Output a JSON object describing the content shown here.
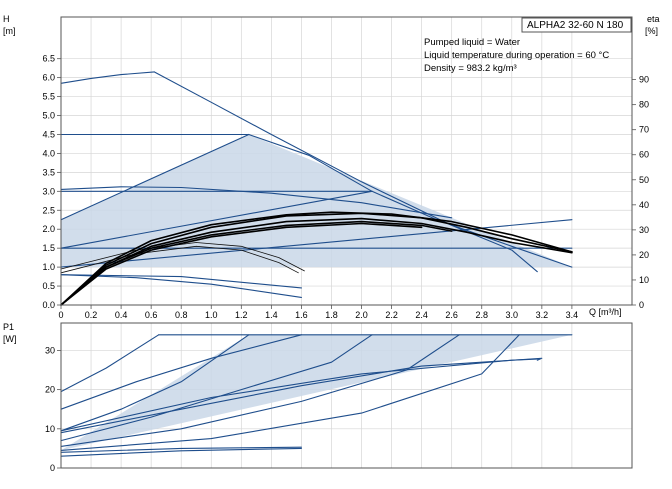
{
  "chart_data": [
    {
      "type": "line",
      "panel": "head-efficiency",
      "model_label": "ALPHA2 32-60 N 180",
      "notes": [
        "Pumped liquid = Water",
        "Liquid temperature during operation = 60 °C",
        "Density = 983.2 kg/m³"
      ],
      "xlabel": "Q [m³/h]",
      "ylabel_line1": "H",
      "ylabel_line2": "[m]",
      "y2label_line1": "eta",
      "y2label_line2": "[%]",
      "xlim": [
        0,
        3.8
      ],
      "ylim": [
        0,
        7.6
      ],
      "y2lim": [
        0,
        115
      ],
      "x_ticks": [
        0,
        0.2,
        0.4,
        0.6,
        0.8,
        1.0,
        1.2,
        1.4,
        1.6,
        1.8,
        2.0,
        2.2,
        2.4,
        2.6,
        2.8,
        3.0,
        3.2,
        3.4
      ],
      "x_tick_labels": [
        "0",
        "0.2",
        "0.4",
        "0.6",
        "0.8",
        "1.0",
        "1.2",
        "1.4",
        "1.6",
        "1.8",
        "2.0",
        "2.2",
        "2.4",
        "2.6",
        "2.8",
        "3.0",
        "3.2",
        "3.4"
      ],
      "y_ticks": [
        0,
        0.5,
        1.0,
        1.5,
        2.0,
        2.5,
        3.0,
        3.5,
        4.0,
        4.5,
        5.0,
        5.5,
        6.0,
        6.5
      ],
      "y_tick_labels": [
        "0.0",
        "0.5",
        "1.0",
        "1.5",
        "2.0",
        "2.5",
        "3.0",
        "3.5",
        "4.0",
        "4.5",
        "5.0",
        "5.5",
        "6.0",
        "6.5"
      ],
      "y2_ticks": [
        0,
        10,
        20,
        30,
        40,
        50,
        60,
        70,
        80,
        90
      ],
      "y2_tick_labels": [
        "0",
        "10",
        "20",
        "30",
        "40",
        "50",
        "60",
        "70",
        "80",
        "90"
      ],
      "shaded_region": [
        [
          0,
          2.25
        ],
        [
          1.25,
          4.5
        ],
        [
          3.4,
          1.0
        ],
        [
          0,
          1.0
        ]
      ],
      "series": [
        {
          "style": "dark",
          "points": [
            [
              0,
              4.5
            ],
            [
              1.25,
              4.5
            ]
          ]
        },
        {
          "style": "dark",
          "points": [
            [
              0,
              3.0
            ],
            [
              2.07,
              3.0
            ]
          ]
        },
        {
          "style": "dark",
          "points": [
            [
              0,
              1.5
            ],
            [
              3.4,
              1.5
            ]
          ]
        },
        {
          "style": "dark",
          "points": [
            [
              0,
              2.25
            ],
            [
              1.25,
              4.5
            ]
          ]
        },
        {
          "style": "dark",
          "points": [
            [
              1.25,
              4.5
            ],
            [
              1.65,
              3.95
            ],
            [
              2.07,
              3.0
            ],
            [
              2.5,
              2.25
            ],
            [
              3.0,
              1.55
            ],
            [
              3.4,
              1.0
            ]
          ]
        },
        {
          "style": "dark",
          "points": [
            [
              0,
              1.5
            ],
            [
              2.07,
              3.0
            ]
          ]
        },
        {
          "style": "dark",
          "points": [
            [
              0,
              1.0
            ],
            [
              3.4,
              2.25
            ]
          ]
        },
        {
          "style": "dark",
          "points": [
            [
              0,
              5.85
            ],
            [
              0.2,
              5.98
            ],
            [
              0.4,
              6.08
            ],
            [
              0.62,
              6.15
            ]
          ]
        },
        {
          "style": "dark",
          "points": [
            [
              0.62,
              6.15
            ],
            [
              1.0,
              5.35
            ],
            [
              1.4,
              4.5
            ],
            [
              2.0,
              3.25
            ],
            [
              2.6,
              2.1
            ],
            [
              3.0,
              1.45
            ],
            [
              3.17,
              0.88
            ]
          ]
        },
        {
          "style": "dark",
          "points": [
            [
              0,
              3.05
            ],
            [
              0.4,
              3.12
            ],
            [
              0.8,
              3.1
            ],
            [
              1.4,
              2.95
            ],
            [
              2.0,
              2.7
            ],
            [
              2.6,
              2.3
            ]
          ]
        },
        {
          "style": "dark",
          "points": [
            [
              0,
              0.8
            ],
            [
              0.5,
              0.72
            ],
            [
              1.0,
              0.55
            ],
            [
              1.6,
              0.2
            ]
          ]
        },
        {
          "style": "dark",
          "points": [
            [
              0,
              0.8
            ],
            [
              0.8,
              0.75
            ],
            [
              1.6,
              0.45
            ]
          ]
        },
        {
          "style": "thin",
          "points": [
            [
              0,
              0.95
            ],
            [
              0.5,
              1.45
            ],
            [
              0.9,
              1.65
            ],
            [
              1.2,
              1.55
            ],
            [
              1.45,
              1.25
            ],
            [
              1.62,
              0.9
            ]
          ]
        },
        {
          "style": "thin",
          "points": [
            [
              0,
              0.85
            ],
            [
              0.5,
              1.35
            ],
            [
              0.9,
              1.55
            ],
            [
              1.2,
              1.45
            ],
            [
              1.45,
              1.12
            ],
            [
              1.58,
              0.85
            ]
          ]
        },
        {
          "style": "eff",
          "points": [
            [
              0,
              0
            ],
            [
              0.3,
              1.0
            ],
            [
              0.6,
              1.55
            ],
            [
              1.0,
              1.92
            ],
            [
              1.5,
              2.2
            ],
            [
              2.0,
              2.28
            ],
            [
              2.4,
              2.15
            ],
            [
              2.7,
              1.92
            ],
            [
              3.0,
              1.65
            ],
            [
              3.4,
              1.38
            ]
          ]
        },
        {
          "style": "eff",
          "points": [
            [
              0,
              0
            ],
            [
              0.3,
              1.05
            ],
            [
              0.6,
              1.62
            ],
            [
              1.0,
              2.05
            ],
            [
              1.5,
              2.35
            ],
            [
              2.0,
              2.42
            ],
            [
              2.4,
              2.3
            ],
            [
              2.7,
              2.05
            ],
            [
              3.0,
              1.75
            ],
            [
              3.4,
              1.4
            ]
          ]
        },
        {
          "style": "eff",
          "points": [
            [
              0,
              0
            ],
            [
              0.3,
              1.1
            ],
            [
              0.6,
              1.7
            ],
            [
              1.0,
              2.12
            ],
            [
              1.5,
              2.38
            ],
            [
              1.8,
              2.45
            ],
            [
              2.2,
              2.4
            ],
            [
              2.6,
              2.2
            ],
            [
              3.0,
              1.85
            ],
            [
              3.4,
              1.4
            ]
          ]
        },
        {
          "style": "eff",
          "points": [
            [
              0,
              0
            ],
            [
              0.3,
              1.0
            ],
            [
              0.6,
              1.5
            ],
            [
              1.0,
              1.85
            ],
            [
              1.5,
              2.1
            ],
            [
              2.0,
              2.2
            ],
            [
              2.4,
              2.1
            ],
            [
              2.6,
              1.95
            ]
          ]
        },
        {
          "style": "eff",
          "points": [
            [
              0,
              0
            ],
            [
              0.3,
              0.95
            ],
            [
              0.6,
              1.45
            ],
            [
              1.0,
              1.8
            ],
            [
              1.5,
              2.05
            ],
            [
              2.0,
              2.15
            ],
            [
              2.4,
              2.05
            ]
          ]
        }
      ]
    },
    {
      "type": "line",
      "panel": "power",
      "xlabel": "",
      "ylabel_line1": "P1",
      "ylabel_line2": "[W]",
      "xlim": [
        0,
        3.8
      ],
      "ylim": [
        0,
        37
      ],
      "y_ticks": [
        0,
        10,
        20,
        30
      ],
      "y_tick_labels": [
        "0",
        "10",
        "20",
        "30"
      ],
      "shaded_region": [
        [
          0,
          4.5
        ],
        [
          1.25,
          34
        ],
        [
          3.4,
          34
        ],
        [
          0,
          4.5
        ]
      ],
      "series": [
        {
          "style": "dark",
          "points": [
            [
              0,
              19.5
            ],
            [
              0.3,
              25.5
            ],
            [
              0.65,
              34
            ]
          ]
        },
        {
          "style": "dark",
          "points": [
            [
              0.65,
              34
            ],
            [
              3.4,
              34
            ]
          ]
        },
        {
          "style": "dark",
          "points": [
            [
              0,
              15
            ],
            [
              0.5,
              22
            ],
            [
              1.0,
              28
            ],
            [
              1.6,
              34
            ]
          ]
        },
        {
          "style": "dark",
          "points": [
            [
              0,
              9.5
            ],
            [
              0.4,
              15
            ],
            [
              0.8,
              22
            ],
            [
              1.25,
              34
            ]
          ]
        },
        {
          "style": "dark",
          "points": [
            [
              0,
              7
            ],
            [
              0.6,
              13
            ],
            [
              1.2,
              20
            ],
            [
              1.8,
              27
            ],
            [
              2.07,
              34
            ]
          ]
        },
        {
          "style": "dark",
          "points": [
            [
              0,
              5.5
            ],
            [
              0.8,
              10
            ],
            [
              1.6,
              17
            ],
            [
              2.3,
              25
            ],
            [
              2.65,
              34
            ]
          ]
        },
        {
          "style": "dark",
          "points": [
            [
              0,
              4.5
            ],
            [
              1.0,
              7.5
            ],
            [
              2.0,
              14
            ],
            [
              2.8,
              24
            ],
            [
              3.05,
              34
            ]
          ]
        },
        {
          "style": "dark",
          "points": [
            [
              0,
              9
            ],
            [
              0.8,
              15
            ],
            [
              1.6,
              21
            ],
            [
              2.4,
              26
            ],
            [
              3.2,
              28
            ],
            [
              3.17,
              27.5
            ]
          ]
        },
        {
          "style": "dark",
          "points": [
            [
              0,
              9.5
            ],
            [
              1.0,
              18
            ],
            [
              2.0,
              24
            ],
            [
              3.0,
              27.5
            ],
            [
              3.17,
              27.8
            ]
          ]
        },
        {
          "style": "dark",
          "points": [
            [
              0,
              4
            ],
            [
              0.8,
              5
            ],
            [
              1.6,
              5.3
            ]
          ]
        },
        {
          "style": "dark",
          "points": [
            [
              0,
              3
            ],
            [
              0.8,
              4.4
            ],
            [
              1.6,
              5.0
            ]
          ]
        }
      ]
    }
  ]
}
